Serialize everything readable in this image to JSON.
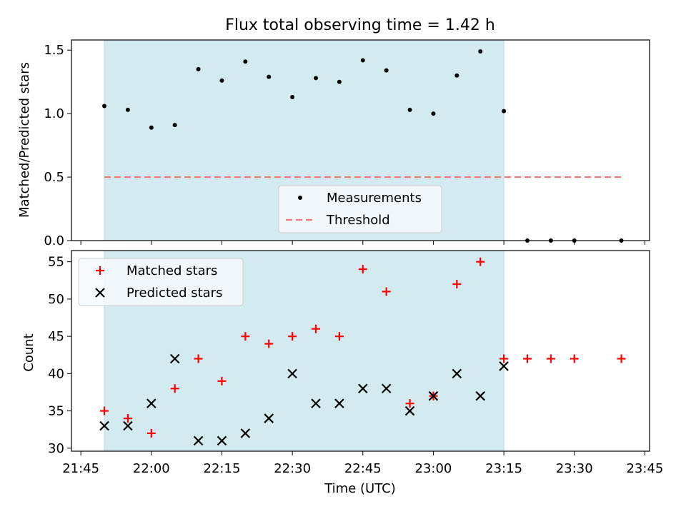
{
  "colors": {
    "observing_band": "#d3ebf0",
    "observing_band_edge": "#b9dde6",
    "measurement": "#000000",
    "threshold": "#f07878",
    "matched": "#ff0000",
    "predicted": "#000000",
    "legend_bg": "#f6f9fb",
    "legend_border": "#cccccc"
  },
  "chart_data": [
    {
      "type": "scatter",
      "panel": "top",
      "title": "Flux total observing time = 1.42 h",
      "xlabel": "",
      "ylabel": "Matched/Predicted stars",
      "xlim": [
        "21:43",
        "23:46"
      ],
      "ylim": [
        0,
        1.58
      ],
      "yticks": [
        0.0,
        0.5,
        1.0,
        1.5
      ],
      "ytick_labels": [
        "0.0",
        "0.5",
        "1.0",
        "1.5"
      ],
      "observing_window": [
        "21:50",
        "23:15"
      ],
      "legend": {
        "placement": "lower-center",
        "entries": [
          "Measurements",
          "Threshold"
        ]
      },
      "series": [
        {
          "name": "Measurements",
          "marker": "dot",
          "x": [
            "21:50",
            "21:55",
            "22:00",
            "22:05",
            "22:10",
            "22:15",
            "22:20",
            "22:25",
            "22:30",
            "22:35",
            "22:40",
            "22:45",
            "22:50",
            "22:55",
            "23:00",
            "23:05",
            "23:10",
            "23:15",
            "23:20",
            "23:25",
            "23:30",
            "23:40"
          ],
          "y": [
            1.06,
            1.03,
            0.89,
            0.91,
            1.35,
            1.26,
            1.41,
            1.29,
            1.13,
            1.28,
            1.25,
            1.42,
            1.34,
            1.03,
            1.0,
            1.3,
            1.49,
            1.02,
            0.0,
            0.0,
            0.0,
            0.0
          ]
        },
        {
          "name": "Threshold",
          "style": "dashed",
          "x": [
            "21:50",
            "23:40"
          ],
          "y": [
            0.5,
            0.5
          ]
        }
      ]
    },
    {
      "type": "scatter",
      "panel": "bottom",
      "xlabel": "Time (UTC)",
      "ylabel": "Count",
      "xlim": [
        "21:43",
        "23:46"
      ],
      "ylim": [
        29.6,
        56.5
      ],
      "yticks": [
        30,
        35,
        40,
        45,
        50,
        55
      ],
      "xticks": [
        "21:45",
        "22:00",
        "22:15",
        "22:30",
        "22:45",
        "23:00",
        "23:15",
        "23:30",
        "23:45"
      ],
      "observing_window": [
        "21:50",
        "23:15"
      ],
      "legend": {
        "placement": "top-left",
        "entries": [
          "Matched stars",
          "Predicted stars"
        ]
      },
      "series": [
        {
          "name": "Matched stars",
          "marker": "plus",
          "x": [
            "21:50",
            "21:55",
            "22:00",
            "22:05",
            "22:10",
            "22:15",
            "22:20",
            "22:25",
            "22:30",
            "22:35",
            "22:40",
            "22:45",
            "22:50",
            "22:55",
            "23:00",
            "23:05",
            "23:10",
            "23:15",
            "23:20",
            "23:25",
            "23:30",
            "23:40"
          ],
          "y": [
            35,
            34,
            32,
            38,
            42,
            39,
            45,
            44,
            45,
            46,
            45,
            54,
            51,
            36,
            37,
            52,
            55,
            42,
            42,
            42,
            42,
            42
          ]
        },
        {
          "name": "Predicted stars",
          "marker": "x",
          "x": [
            "21:50",
            "21:55",
            "22:00",
            "22:05",
            "22:10",
            "22:15",
            "22:20",
            "22:25",
            "22:30",
            "22:35",
            "22:40",
            "22:45",
            "22:50",
            "22:55",
            "23:00",
            "23:05",
            "23:10",
            "23:15"
          ],
          "y": [
            33,
            33,
            36,
            42,
            31,
            31,
            32,
            34,
            40,
            36,
            36,
            38,
            38,
            35,
            37,
            40,
            37,
            41
          ]
        }
      ]
    }
  ]
}
